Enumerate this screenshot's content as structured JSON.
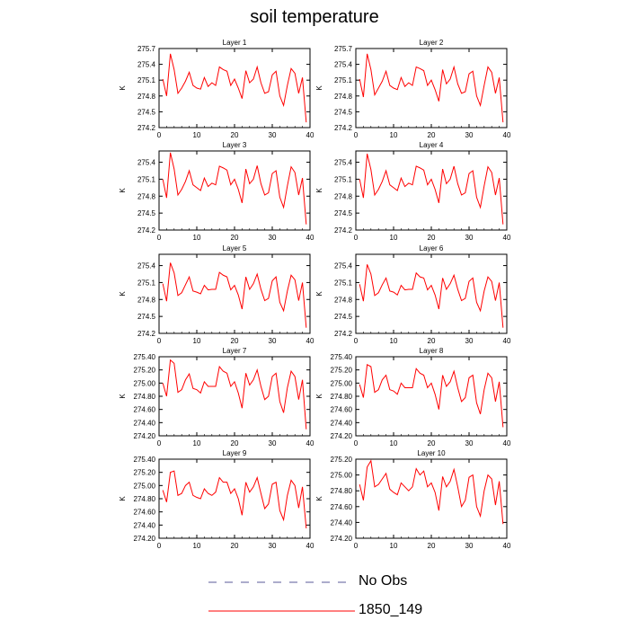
{
  "title": "soil temperature",
  "legend": {
    "items": [
      {
        "label": "No Obs",
        "style": "dashed",
        "color": "#5a5a9a"
      },
      {
        "label": "1850_149",
        "style": "solid",
        "color": "#ff0000"
      }
    ]
  },
  "colors": {
    "series": "#ff0000",
    "axis": "#000000"
  },
  "chart_data": [
    {
      "type": "line",
      "title": "Layer 1",
      "ylabel": "K",
      "xlim": [
        0,
        40
      ],
      "ylim": [
        274.2,
        275.7
      ],
      "yticks": [
        "274.2",
        "274.5",
        "274.8",
        "275.1",
        "275.4",
        "275.7"
      ],
      "xticks": [
        "0",
        "10",
        "20",
        "30",
        "40"
      ],
      "series": [
        {
          "values": [
            275.12,
            274.8,
            275.6,
            275.3,
            274.85,
            274.95,
            275.08,
            275.25,
            275.0,
            274.95,
            274.93,
            275.15,
            274.98,
            275.05,
            275.0,
            275.35,
            275.3,
            275.27,
            275.0,
            275.12,
            274.95,
            274.75,
            275.28,
            275.05,
            275.12,
            275.35,
            275.05,
            274.85,
            274.88,
            275.2,
            275.27,
            274.8,
            274.62,
            275.0,
            275.32,
            275.23,
            274.85,
            275.15,
            274.3
          ]
        }
      ]
    },
    {
      "type": "line",
      "title": "Layer 2",
      "ylabel": "K",
      "xlim": [
        0,
        40
      ],
      "ylim": [
        274.2,
        275.7
      ],
      "yticks": [
        "274.2",
        "274.5",
        "274.8",
        "275.1",
        "275.4",
        "275.7"
      ],
      "xticks": [
        "0",
        "10",
        "20",
        "30",
        "40"
      ],
      "series": [
        {
          "values": [
            275.12,
            274.78,
            275.6,
            275.3,
            274.82,
            274.95,
            275.08,
            275.27,
            275.0,
            274.95,
            274.92,
            275.15,
            274.98,
            275.05,
            275.0,
            275.35,
            275.32,
            275.28,
            275.0,
            275.1,
            274.92,
            274.7,
            275.3,
            275.03,
            275.12,
            275.35,
            275.03,
            274.85,
            274.88,
            275.22,
            275.27,
            274.8,
            274.62,
            275.0,
            275.35,
            275.25,
            274.85,
            275.15,
            274.3
          ]
        }
      ]
    },
    {
      "type": "line",
      "title": "Layer 3",
      "ylabel": "K",
      "xlim": [
        0,
        40
      ],
      "ylim": [
        274.2,
        275.6
      ],
      "yticks": [
        "274.2",
        "274.5",
        "274.8",
        "275.1",
        "275.4"
      ],
      "xticks": [
        "0",
        "10",
        "20",
        "30",
        "40"
      ],
      "series": [
        {
          "values": [
            275.1,
            274.77,
            275.57,
            275.28,
            274.82,
            274.92,
            275.06,
            275.25,
            275.0,
            274.95,
            274.9,
            275.12,
            274.97,
            275.03,
            275.0,
            275.33,
            275.3,
            275.26,
            275.0,
            275.1,
            274.92,
            274.68,
            275.28,
            275.02,
            275.1,
            275.34,
            275.02,
            274.82,
            274.86,
            275.2,
            275.25,
            274.78,
            274.6,
            274.98,
            275.32,
            275.22,
            274.82,
            275.12,
            274.3
          ]
        }
      ]
    },
    {
      "type": "line",
      "title": "Layer 4",
      "ylabel": "K",
      "xlim": [
        0,
        40
      ],
      "ylim": [
        274.2,
        275.6
      ],
      "yticks": [
        "274.2",
        "274.5",
        "274.8",
        "275.1",
        "275.4"
      ],
      "xticks": [
        "0",
        "10",
        "20",
        "30",
        "40"
      ],
      "series": [
        {
          "values": [
            275.1,
            274.77,
            275.55,
            275.27,
            274.82,
            274.92,
            275.06,
            275.25,
            275.0,
            274.95,
            274.9,
            275.12,
            274.97,
            275.03,
            275.0,
            275.33,
            275.3,
            275.26,
            275.0,
            275.1,
            274.92,
            274.68,
            275.28,
            275.02,
            275.1,
            275.33,
            275.02,
            274.82,
            274.86,
            275.2,
            275.25,
            274.78,
            274.6,
            274.98,
            275.32,
            275.22,
            274.82,
            275.12,
            274.3
          ]
        }
      ]
    },
    {
      "type": "line",
      "title": "Layer 5",
      "ylabel": "K",
      "xlim": [
        0,
        40
      ],
      "ylim": [
        274.2,
        275.6
      ],
      "yticks": [
        "274.2",
        "274.5",
        "274.8",
        "275.1",
        "275.4"
      ],
      "xticks": [
        "0",
        "10",
        "20",
        "30",
        "40"
      ],
      "series": [
        {
          "values": [
            275.08,
            274.77,
            275.45,
            275.27,
            274.87,
            274.92,
            275.06,
            275.2,
            274.95,
            274.93,
            274.9,
            275.05,
            274.97,
            274.98,
            274.98,
            275.28,
            275.23,
            275.2,
            274.97,
            275.05,
            274.88,
            274.63,
            275.2,
            274.98,
            275.08,
            275.25,
            274.98,
            274.78,
            274.82,
            275.13,
            275.2,
            274.75,
            274.6,
            274.95,
            275.23,
            275.15,
            274.78,
            275.1,
            274.3
          ]
        }
      ]
    },
    {
      "type": "line",
      "title": "Layer 6",
      "ylabel": "K",
      "xlim": [
        0,
        40
      ],
      "ylim": [
        274.2,
        275.6
      ],
      "yticks": [
        "274.2",
        "274.5",
        "274.8",
        "275.1",
        "275.4"
      ],
      "xticks": [
        "0",
        "10",
        "20",
        "30",
        "40"
      ],
      "series": [
        {
          "values": [
            275.07,
            274.77,
            275.42,
            275.25,
            274.87,
            274.92,
            275.06,
            275.18,
            274.95,
            274.93,
            274.88,
            275.05,
            274.97,
            274.98,
            274.98,
            275.27,
            275.2,
            275.18,
            274.97,
            275.05,
            274.88,
            274.63,
            275.18,
            274.98,
            275.08,
            275.23,
            274.98,
            274.78,
            274.82,
            275.12,
            275.18,
            274.75,
            274.6,
            274.95,
            275.2,
            275.12,
            274.78,
            275.1,
            274.3
          ]
        }
      ]
    },
    {
      "type": "line",
      "title": "Layer 7",
      "ylabel": "K",
      "xlim": [
        0,
        40
      ],
      "ylim": [
        274.2,
        275.4
      ],
      "yticks": [
        "274.20",
        "274.40",
        "274.60",
        "274.80",
        "275.00",
        "275.20",
        "275.40"
      ],
      "xticks": [
        "0",
        "10",
        "20",
        "30",
        "40"
      ],
      "series": [
        {
          "values": [
            275.0,
            274.8,
            275.35,
            275.3,
            274.86,
            274.9,
            275.05,
            275.14,
            274.92,
            274.9,
            274.85,
            275.02,
            274.95,
            274.95,
            274.95,
            275.25,
            275.18,
            275.15,
            274.95,
            275.02,
            274.85,
            274.62,
            275.15,
            274.97,
            275.05,
            275.2,
            274.95,
            274.75,
            274.8,
            275.1,
            275.15,
            274.72,
            274.55,
            274.93,
            275.18,
            275.1,
            274.75,
            275.05,
            274.3
          ]
        }
      ]
    },
    {
      "type": "line",
      "title": "Layer 8",
      "ylabel": "K",
      "xlim": [
        0,
        40
      ],
      "ylim": [
        274.2,
        275.4
      ],
      "yticks": [
        "274.20",
        "274.40",
        "274.60",
        "274.80",
        "275.00",
        "275.20",
        "275.40"
      ],
      "xticks": [
        "0",
        "10",
        "20",
        "30",
        "40"
      ],
      "series": [
        {
          "values": [
            274.98,
            274.78,
            275.28,
            275.25,
            274.86,
            274.9,
            275.05,
            275.12,
            274.9,
            274.88,
            274.83,
            275.0,
            274.93,
            274.93,
            274.93,
            275.22,
            275.15,
            275.12,
            274.93,
            275.0,
            274.83,
            274.6,
            275.12,
            274.95,
            275.02,
            275.18,
            274.93,
            274.72,
            274.78,
            275.08,
            275.12,
            274.7,
            274.53,
            274.9,
            275.15,
            275.08,
            274.72,
            275.02,
            274.33
          ]
        }
      ]
    },
    {
      "type": "line",
      "title": "Layer 9",
      "ylabel": "K",
      "xlim": [
        0,
        40
      ],
      "ylim": [
        274.2,
        275.4
      ],
      "yticks": [
        "274.20",
        "274.40",
        "274.60",
        "274.80",
        "275.00",
        "275.20",
        "275.40"
      ],
      "xticks": [
        "0",
        "10",
        "20",
        "30",
        "40"
      ],
      "series": [
        {
          "values": [
            274.93,
            274.75,
            275.2,
            275.22,
            274.85,
            274.88,
            275.0,
            275.05,
            274.85,
            274.82,
            274.8,
            274.95,
            274.88,
            274.85,
            274.9,
            275.12,
            275.05,
            275.05,
            274.88,
            274.95,
            274.8,
            274.55,
            275.05,
            274.9,
            274.98,
            275.12,
            274.88,
            274.65,
            274.72,
            275.02,
            275.05,
            274.62,
            274.48,
            274.85,
            275.08,
            275.0,
            274.66,
            274.98,
            274.35
          ]
        }
      ]
    },
    {
      "type": "line",
      "title": "Layer 10",
      "ylabel": "K",
      "xlim": [
        0,
        40
      ],
      "ylim": [
        274.2,
        275.2
      ],
      "yticks": [
        "274.20",
        "274.40",
        "274.60",
        "274.80",
        "275.00",
        "275.20"
      ],
      "xticks": [
        "0",
        "10",
        "20",
        "30",
        "40"
      ],
      "series": [
        {
          "values": [
            274.88,
            274.68,
            275.1,
            275.18,
            274.85,
            274.88,
            274.95,
            275.02,
            274.82,
            274.78,
            274.75,
            274.9,
            274.85,
            274.8,
            274.85,
            275.08,
            275.0,
            275.05,
            274.85,
            274.9,
            274.78,
            274.55,
            274.98,
            274.85,
            274.92,
            275.07,
            274.85,
            274.6,
            274.68,
            274.97,
            275.0,
            274.6,
            274.48,
            274.8,
            275.0,
            274.95,
            274.62,
            274.92,
            274.38
          ]
        }
      ]
    }
  ]
}
